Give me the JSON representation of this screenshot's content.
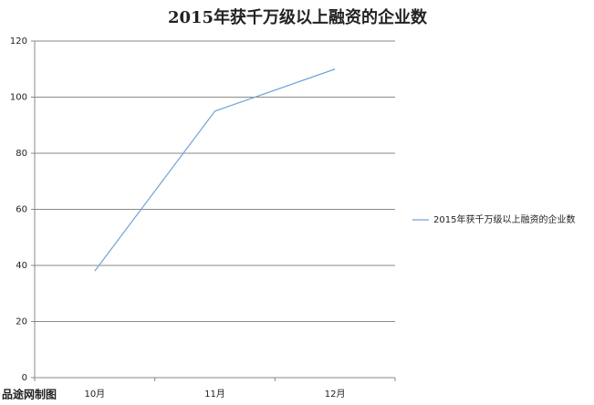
{
  "chart_data": {
    "type": "line",
    "title": "2015年获千万级以上融资的企业数",
    "categories": [
      "10月",
      "11月",
      "12月"
    ],
    "series": [
      {
        "name": "2015年获千万级以上融资的企业数",
        "color": "#6fa3d8",
        "values": [
          38,
          95,
          110
        ]
      }
    ],
    "ylim": [
      0,
      120
    ],
    "yticks": [
      0,
      20,
      40,
      60,
      80,
      100,
      120
    ],
    "grid": true,
    "legend": "right",
    "note": "品途网制图"
  }
}
